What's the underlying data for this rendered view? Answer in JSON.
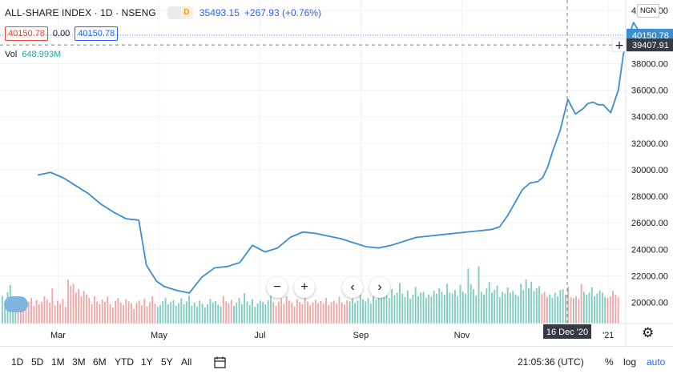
{
  "header": {
    "title": "ALL-SHARE INDEX · 1D · NSENG",
    "chip_label": "D",
    "last_value": "35493.15",
    "change": "+267.93 (+0.76%)",
    "currency": "NGN"
  },
  "legend": {
    "box_red": "40150.78",
    "mid_value": "0.00",
    "box_blue": "40150.78",
    "vol_label": "Vol",
    "vol_value": "648.993M"
  },
  "price_axis": {
    "ticks": [
      "42000.00",
      "40000.00",
      "38000.00",
      "36000.00",
      "34000.00",
      "32000.00",
      "30000.00",
      "28000.00",
      "26000.00",
      "24000.00",
      "22000.00",
      "20000.00"
    ],
    "last_price_label": "40150.78",
    "crosshair_price_label": "39407.91"
  },
  "time_axis": {
    "ticks": [
      "Mar",
      "May",
      "Jul",
      "Sep",
      "Nov",
      "'21"
    ],
    "crosshair_date": "16 Dec '20"
  },
  "controls": {
    "zoom_out": "−",
    "zoom_in": "+",
    "scroll_left": "‹",
    "scroll_right": "›",
    "settings_icon": "gear-icon",
    "compare_icon": "compare-icon"
  },
  "bottom_bar": {
    "ranges": [
      "1D",
      "5D",
      "1M",
      "3M",
      "6M",
      "YTD",
      "1Y",
      "5Y",
      "All"
    ],
    "time": "21:05:36 (UTC)",
    "percent": "%",
    "log": "log",
    "auto": "auto"
  },
  "colors": {
    "line": "#3d8dd0",
    "volume_up": "#7ecbc0",
    "volume_down": "#f0a4a4",
    "crosshair": "#787b86",
    "label_bg": "#363a45"
  },
  "chart_data": {
    "type": "line",
    "title": "ALL-SHARE INDEX · 1D · NSENG",
    "xlabel": "",
    "ylabel": "",
    "x_ticks": [
      "Mar",
      "May",
      "Jul",
      "Sep",
      "Nov",
      "'21"
    ],
    "ylim": [
      18400,
      42800
    ],
    "grid": true,
    "series": [
      {
        "x": [
          1.0,
          1.25,
          1.5,
          1.75,
          2.0,
          2.25,
          2.5,
          2.75,
          3.0,
          3.15,
          3.35,
          3.5,
          3.75,
          4.0,
          4.25,
          4.5,
          4.75,
          5.0,
          5.25,
          5.5,
          5.75,
          6.0,
          6.25,
          6.5,
          6.75,
          7.0,
          7.25,
          7.5,
          7.75,
          8.0,
          8.25,
          8.5,
          8.75,
          9.0,
          9.25,
          9.5,
          9.75,
          10.0,
          10.15,
          10.3,
          10.45,
          10.6,
          10.75,
          10.9,
          11.0,
          11.1,
          11.2,
          11.35,
          11.5,
          11.65,
          11.8,
          11.9,
          12.0,
          12.1,
          12.2,
          12.35,
          12.5,
          12.6,
          12.65,
          12.8,
          12.9,
          13.0,
          13.1
        ],
        "values": [
          29600,
          29800,
          29400,
          28800,
          28200,
          27400,
          26800,
          26300,
          26200,
          22800,
          21600,
          21200,
          20900,
          20700,
          21900,
          22600,
          22700,
          23000,
          24300,
          23800,
          24100,
          24900,
          25300,
          25200,
          25000,
          24800,
          24500,
          24200,
          24100,
          24300,
          24600,
          24900,
          25000,
          25100,
          25200,
          25300,
          25400,
          25500,
          25700,
          26500,
          27500,
          28500,
          29000,
          29100,
          29400,
          30200,
          31400,
          33000,
          35300,
          34200,
          34600,
          35000,
          35100,
          34900,
          34900,
          34300,
          36000,
          38700,
          39400,
          41100,
          40500,
          40300,
          40150
        ]
      }
    ],
    "volume": {
      "unit": "relative",
      "values": [
        0.62,
        0.46,
        0.71,
        0.88,
        0.55,
        0.48,
        0.35,
        0.6,
        0.52,
        0.45,
        0.5,
        0.58,
        0.4,
        0.53,
        0.44,
        0.49,
        0.62,
        0.55,
        0.47,
        0.8,
        0.41,
        0.52,
        0.45,
        0.56,
        0.38,
        1.0,
        0.86,
        0.9,
        0.7,
        0.78,
        0.62,
        0.74,
        0.66,
        0.58,
        0.44,
        0.62,
        0.5,
        0.45,
        0.54,
        0.49,
        0.61,
        0.44,
        0.36,
        0.52,
        0.58,
        0.47,
        0.42,
        0.55,
        0.5,
        0.46,
        0.33,
        0.47,
        0.52,
        0.41,
        0.56,
        0.39,
        0.48,
        0.62,
        0.45,
        0.38,
        0.42,
        0.51,
        0.58,
        0.44,
        0.49,
        0.53,
        0.4,
        0.46,
        0.57,
        0.44,
        0.5,
        0.63,
        0.41,
        0.47,
        0.38,
        0.52,
        0.45,
        0.36,
        0.44,
        0.56,
        0.48,
        0.51,
        0.43,
        0.39,
        0.62,
        0.5,
        0.46,
        0.54,
        0.4,
        0.47,
        0.58,
        0.44,
        0.69,
        0.5,
        0.42,
        0.55,
        0.38,
        0.46,
        0.52,
        0.49,
        0.44,
        0.53,
        0.66,
        0.48,
        0.41,
        0.5,
        0.57,
        0.45,
        0.62,
        0.52,
        0.47,
        0.38,
        0.55,
        0.49,
        0.44,
        0.59,
        0.5,
        0.42,
        0.48,
        0.54,
        0.46,
        0.51,
        0.45,
        0.58,
        0.43,
        0.49,
        0.52,
        0.46,
        0.61,
        0.48,
        0.44,
        0.53,
        0.5,
        0.57,
        0.47,
        0.52,
        0.66,
        0.55,
        0.5,
        0.58,
        0.45,
        0.62,
        0.54,
        0.72,
        0.6,
        0.8,
        0.66,
        0.58,
        0.78,
        0.64,
        0.7,
        0.92,
        0.68,
        0.6,
        0.75,
        0.56,
        0.66,
        0.83,
        0.62,
        0.7,
        0.72,
        0.58,
        0.66,
        0.61,
        0.74,
        0.68,
        0.8,
        0.72,
        0.65,
        0.9,
        0.7,
        0.68,
        0.76,
        0.62,
        0.88,
        0.72,
        0.68,
        1.25,
        0.9,
        0.78,
        0.64,
        1.3,
        0.72,
        0.66,
        0.8,
        0.94,
        0.7,
        0.76,
        0.86,
        0.6,
        0.72,
        0.68,
        0.82,
        0.7,
        0.74,
        0.66,
        0.62,
        0.9,
        0.76,
        1.0,
        0.8,
        0.95,
        0.74,
        0.8,
        0.85,
        0.68,
        0.72,
        0.6,
        0.66,
        0.58,
        0.7,
        0.62,
        0.76,
        0.78,
        0.66,
        0.84,
        0.6,
        0.58,
        0.62,
        0.56,
        0.9,
        0.72,
        0.66,
        0.7,
        0.82,
        0.62,
        0.68,
        0.74,
        0.7,
        0.6,
        0.58,
        0.62,
        0.74,
        0.66,
        0.6
      ]
    }
  }
}
